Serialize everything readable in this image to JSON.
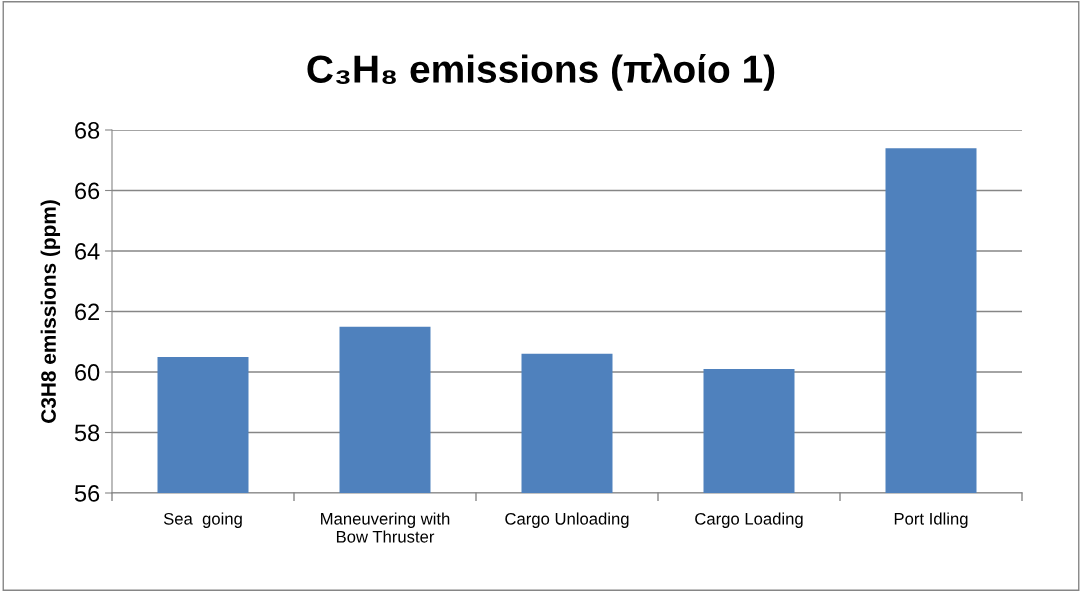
{
  "chart_data": {
    "type": "bar",
    "title": "C₃H₈ emissions (πλοίο 1)",
    "ylabel": "C3H8 emissions (ppm)",
    "categories": [
      "Sea  going",
      "Maneuvering with\nBow Thruster",
      "Cargo Unloading",
      "Cargo Loading",
      "Port Idling"
    ],
    "values": [
      60.5,
      61.5,
      60.6,
      60.1,
      67.4
    ],
    "color": "#4f81bd",
    "ylim": [
      56,
      68
    ],
    "yticks": [
      56,
      58,
      60,
      62,
      64,
      66,
      68
    ],
    "grid": "y",
    "legend": false
  }
}
